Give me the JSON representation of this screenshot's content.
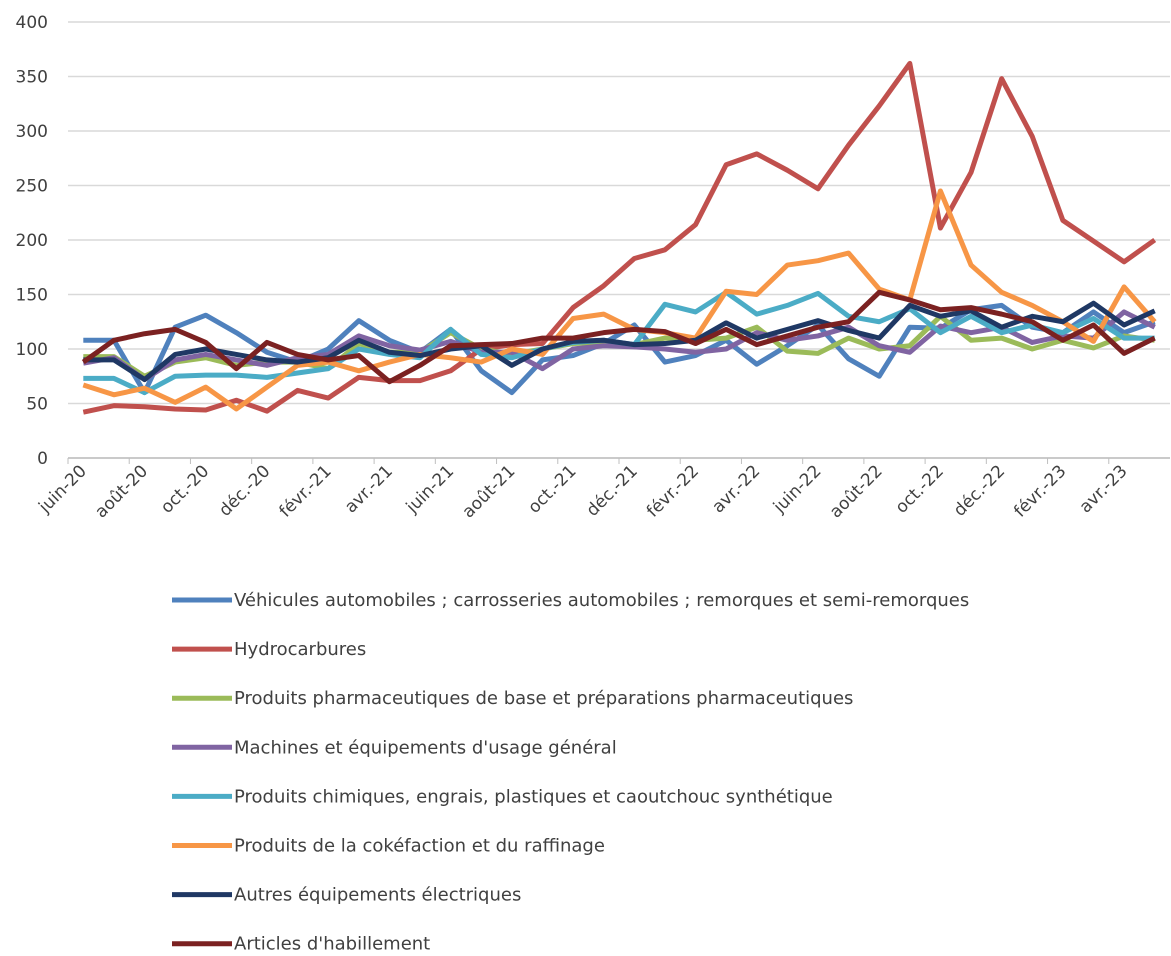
{
  "chart_data": {
    "type": "line",
    "categories": [
      "juin-20",
      null,
      "août-20",
      null,
      "oct.-20",
      null,
      "déc.-20",
      null,
      "févr.-21",
      null,
      "avr.-21",
      null,
      "juin-21",
      null,
      "août-21",
      null,
      "oct.-21",
      null,
      "déc.-21",
      null,
      "févr.-22",
      null,
      "avr.-22",
      null,
      "juin-22",
      null,
      "août-22",
      null,
      "oct.-22",
      null,
      "déc.-22",
      null,
      "févr.-23",
      null,
      "avr.-23",
      null
    ],
    "ylim": [
      0,
      400
    ],
    "yticks": [
      0,
      50,
      100,
      150,
      200,
      250,
      300,
      350,
      400
    ],
    "grid": true,
    "series": [
      {
        "name": "Véhicules automobiles ; carrosseries automobiles ; remorques et semi-remorques",
        "color": "#4f81bd",
        "values": [
          108,
          108,
          60,
          120,
          131,
          115,
          97,
          88,
          100,
          126,
          108,
          97,
          118,
          80,
          60,
          90,
          94,
          105,
          122,
          88,
          94,
          108,
          86,
          103,
          122,
          91,
          75,
          120,
          119,
          136,
          140,
          120,
          115,
          134,
          115,
          125
        ]
      },
      {
        "name": "Hydrocarbures",
        "color": "#c0504d",
        "values": [
          42,
          48,
          47,
          45,
          44,
          53,
          43,
          62,
          55,
          74,
          71,
          71,
          80,
          100,
          104,
          105,
          138,
          158,
          183,
          191,
          214,
          269,
          279,
          264,
          247,
          287,
          323,
          362,
          211,
          262,
          348,
          295,
          218,
          199,
          180,
          200
        ]
      },
      {
        "name": "Produits pharmaceutiques de base et préparations pharmaceutiques",
        "color": "#9bbb59",
        "values": [
          93,
          93,
          75,
          88,
          92,
          85,
          88,
          88,
          82,
          105,
          97,
          97,
          115,
          100,
          95,
          100,
          105,
          106,
          104,
          110,
          108,
          110,
          120,
          98,
          96,
          110,
          100,
          103,
          130,
          108,
          110,
          100,
          108,
          101,
          112,
          108
        ]
      },
      {
        "name": "Machines et équipements d'usage général",
        "color": "#8064a2",
        "values": [
          87,
          92,
          72,
          90,
          95,
          90,
          85,
          92,
          95,
          112,
          103,
          99,
          107,
          97,
          97,
          82,
          100,
          103,
          102,
          100,
          97,
          100,
          115,
          108,
          112,
          120,
          103,
          97,
          121,
          115,
          120,
          106,
          112,
          110,
          134,
          120
        ]
      },
      {
        "name": "Produits chimiques, engrais, plastiques et caoutchouc synthétique",
        "color": "#4bacc6",
        "values": [
          73,
          73,
          60,
          75,
          76,
          76,
          74,
          78,
          82,
          100,
          95,
          92,
          118,
          95,
          92,
          100,
          106,
          108,
          104,
          141,
          134,
          152,
          132,
          140,
          151,
          130,
          125,
          137,
          115,
          130,
          115,
          122,
          115,
          128,
          110,
          110
        ]
      },
      {
        "name": "Produits de la cokéfaction et du raffinage",
        "color": "#f79646",
        "values": [
          67,
          58,
          64,
          51,
          65,
          45,
          65,
          85,
          88,
          80,
          88,
          95,
          92,
          88,
          100,
          95,
          128,
          132,
          118,
          115,
          110,
          153,
          150,
          177,
          181,
          188,
          155,
          145,
          245,
          177,
          152,
          140,
          125,
          107,
          157,
          125
        ]
      },
      {
        "name": "Autres équipements électriques",
        "color": "#1f3864",
        "values": [
          90,
          90,
          72,
          95,
          100,
          95,
          90,
          88,
          92,
          108,
          97,
          94,
          100,
          103,
          85,
          100,
          107,
          108,
          104,
          105,
          108,
          124,
          110,
          118,
          126,
          117,
          110,
          140,
          130,
          135,
          120,
          130,
          125,
          142,
          122,
          135
        ]
      },
      {
        "name": "Articles d'habillement",
        "color": "#7b2121",
        "values": [
          88,
          108,
          114,
          118,
          106,
          82,
          106,
          95,
          90,
          94,
          70,
          85,
          103,
          104,
          105,
          110,
          110,
          115,
          118,
          116,
          105,
          118,
          104,
          112,
          120,
          125,
          152,
          145,
          136,
          138,
          132,
          125,
          108,
          122,
          96,
          110
        ]
      }
    ]
  }
}
